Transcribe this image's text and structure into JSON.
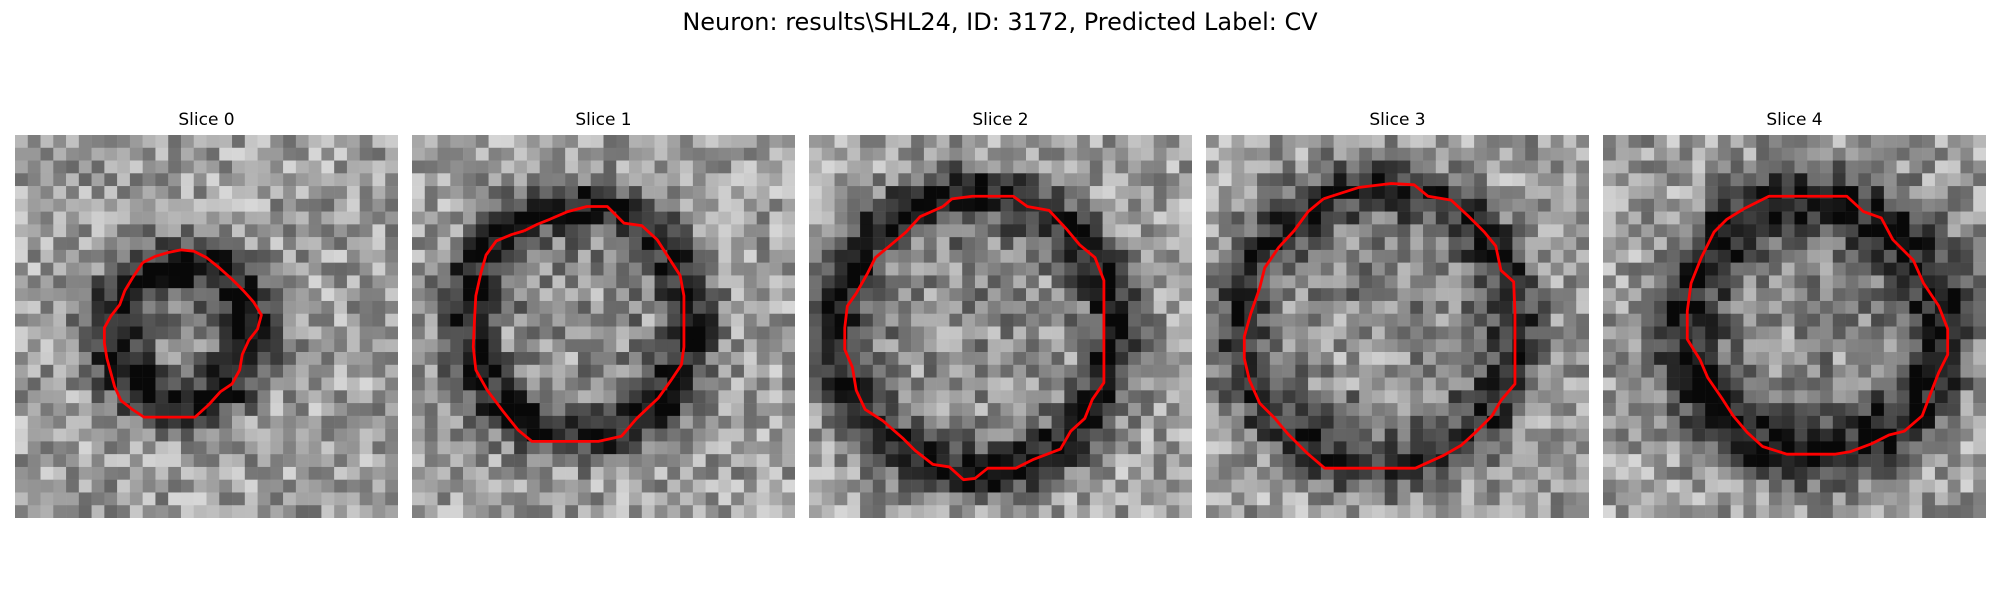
{
  "figure": {
    "title": "Neuron: results\\SHL24, ID: 3172, Predicted Label: CV"
  },
  "panels": [
    {
      "title": "Slice 0",
      "icon": "grayscale-microscopy-image",
      "contour_color": "#ff0000"
    },
    {
      "title": "Slice 1",
      "icon": "grayscale-microscopy-image",
      "contour_color": "#ff0000"
    },
    {
      "title": "Slice 2",
      "icon": "grayscale-microscopy-image",
      "contour_color": "#ff0000"
    },
    {
      "title": "Slice 3",
      "icon": "grayscale-microscopy-image",
      "contour_color": "#ff0000"
    },
    {
      "title": "Slice 4",
      "icon": "grayscale-microscopy-image",
      "contour_color": "#ff0000"
    }
  ]
}
